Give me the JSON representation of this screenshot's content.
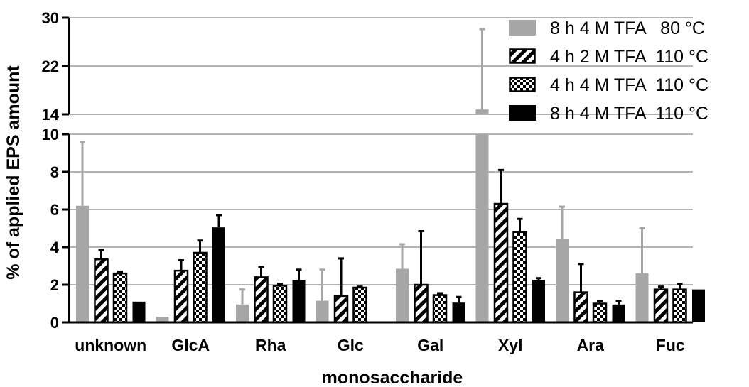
{
  "chart_data": {
    "type": "bar",
    "xlabel": "monosaccharide",
    "ylabel": "% of applied EPS amount",
    "categories": [
      "unknown",
      "GlcA",
      "Rha",
      "Glc",
      "Gal",
      "Xyl",
      "Ara",
      "Fuc"
    ],
    "y_axis_break": true,
    "lower_segment": {
      "ylim": [
        0,
        10
      ],
      "ticks": [
        "0",
        "2",
        "4",
        "6",
        "8",
        "10"
      ]
    },
    "upper_segment": {
      "ylim": [
        14,
        30
      ],
      "ticks": [
        "14",
        "22",
        "30"
      ]
    },
    "grid": "horizontal",
    "legend_position": "top-right",
    "series": [
      {
        "name": "8 h 4 M TFA   80 °C",
        "style": "solid",
        "color": "#a6a6a6",
        "values": [
          6.2,
          0.3,
          0.95,
          1.15,
          2.85,
          14.8,
          4.45,
          2.6
        ],
        "errors": [
          3.4,
          0.0,
          0.8,
          1.65,
          1.3,
          13.3,
          1.7,
          2.4
        ]
      },
      {
        "name": "4 h 2 M TFA  110 °C",
        "style": "diagonal-stripes",
        "color": "#000000",
        "values": [
          3.35,
          2.75,
          2.4,
          1.4,
          2.0,
          6.3,
          1.6,
          1.75
        ],
        "errors": [
          0.5,
          0.55,
          0.55,
          2.0,
          2.85,
          1.8,
          1.5,
          0.15
        ]
      },
      {
        "name": "4 h 4 M TFA  110 °C",
        "style": "checkerboard",
        "color": "#000000",
        "values": [
          2.6,
          3.7,
          1.95,
          1.85,
          1.45,
          4.8,
          1.0,
          1.75
        ],
        "errors": [
          0.1,
          0.65,
          0.1,
          0.05,
          0.1,
          0.7,
          0.15,
          0.3
        ]
      },
      {
        "name": "8 h 4 M TFA  110 °C",
        "style": "solid",
        "color": "#000000",
        "values": [
          1.1,
          5.05,
          2.25,
          null,
          1.05,
          2.25,
          0.95,
          1.75
        ],
        "errors": [
          0.0,
          0.65,
          0.55,
          null,
          0.3,
          0.1,
          0.2,
          0.0
        ]
      }
    ]
  }
}
